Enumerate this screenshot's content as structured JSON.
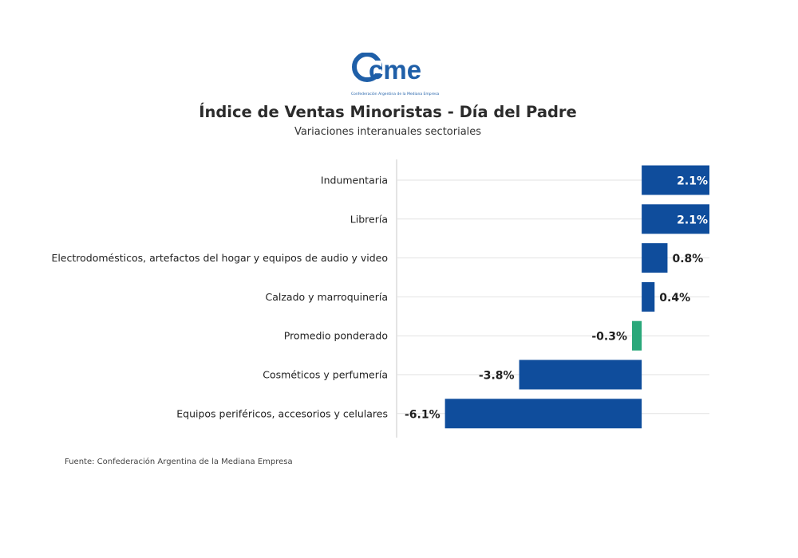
{
  "logo": {
    "text": "cme",
    "tagline": "Confederación Argentina de la Mediana Empresa",
    "color": "#1f5fa8"
  },
  "chart_data": {
    "type": "bar",
    "orientation": "horizontal",
    "title": "Índice de Ventas Minoristas - Día del Padre",
    "subtitle": "Variaciones interanuales sectoriales",
    "categories": [
      "Indumentaria",
      "Librería",
      "Electrodomésticos, artefactos del hogar y equipos de audio y video",
      "Calzado y marroquinería",
      "Promedio ponderado",
      "Cosméticos y perfumería",
      "Equipos periféricos, accesorios y celulares"
    ],
    "values": [
      2.1,
      2.1,
      0.8,
      0.4,
      -0.3,
      -3.8,
      -6.1
    ],
    "labels": [
      "2.1%",
      "2.1%",
      "0.8%",
      "0.4%",
      "-0.3%",
      "-3.8%",
      "-6.1%"
    ],
    "colors": [
      "#0f4d9c",
      "#0f4d9c",
      "#0f4d9c",
      "#0f4d9c",
      "#2aa87a",
      "#0f4d9c",
      "#0f4d9c"
    ],
    "xlim": [
      -7.6,
      2.1
    ],
    "grid": true,
    "legend": "none"
  },
  "source": "Fuente: Confederación Argentina de la Mediana Empresa"
}
